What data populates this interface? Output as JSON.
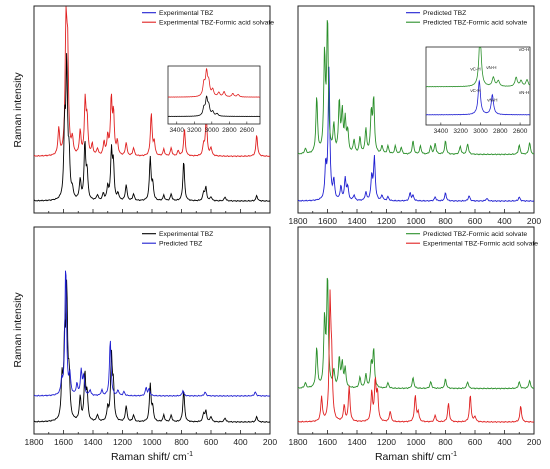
{
  "figure": {
    "y_axis_title": "Raman intensity",
    "x_axis_title": "Raman shift/ cm",
    "x_axis_title_sup": "-1"
  },
  "chart_data": [
    {
      "id": "top-left",
      "type": "line",
      "xlim": [
        1800,
        200
      ],
      "x_ticks": [],
      "legend": {
        "position": "top-right"
      },
      "series": [
        {
          "name": "Experimental TBZ",
          "color": "#1f1fd1",
          "legend_only": true
        },
        {
          "name": "Experimental TBZ-Formic acid solvate",
          "color": "#e02020",
          "offset": 0.24,
          "peaks": [
            [
              1632,
              0.2
            ],
            [
              1583,
              0.98
            ],
            [
              1572,
              0.72
            ],
            [
              1540,
              0.12
            ],
            [
              1487,
              0.18
            ],
            [
              1453,
              0.4
            ],
            [
              1440,
              0.26
            ],
            [
              1405,
              0.08
            ],
            [
              1370,
              0.05
            ],
            [
              1325,
              0.1
            ],
            [
              1300,
              0.14
            ],
            [
              1276,
              0.42
            ],
            [
              1261,
              0.3
            ],
            [
              1235,
              0.1
            ],
            [
              1175,
              0.1
            ],
            [
              1125,
              0.06
            ],
            [
              1005,
              0.32
            ],
            [
              985,
              0.1
            ],
            [
              920,
              0.05
            ],
            [
              870,
              0.06
            ],
            [
              822,
              0.04
            ],
            [
              780,
              0.2
            ],
            [
              650,
              0.08
            ],
            [
              632,
              0.3
            ],
            [
              600,
              0.06
            ],
            [
              290,
              0.16
            ]
          ]
        },
        {
          "name": "",
          "color": "#000000",
          "offset": 0.0,
          "peaks": [
            [
              1592,
              0.52
            ],
            [
              1578,
              0.98
            ],
            [
              1562,
              0.3
            ],
            [
              1540,
              0.07
            ],
            [
              1487,
              0.15
            ],
            [
              1455,
              0.42
            ],
            [
              1440,
              0.2
            ],
            [
              1370,
              0.04
            ],
            [
              1330,
              0.05
            ],
            [
              1300,
              0.1
            ],
            [
              1275,
              0.36
            ],
            [
              1262,
              0.26
            ],
            [
              1230,
              0.05
            ],
            [
              1175,
              0.12
            ],
            [
              1125,
              0.05
            ],
            [
              1012,
              0.32
            ],
            [
              995,
              0.12
            ],
            [
              920,
              0.04
            ],
            [
              870,
              0.05
            ],
            [
              785,
              0.3
            ],
            [
              650,
              0.06
            ],
            [
              635,
              0.1
            ],
            [
              600,
              0.03
            ],
            [
              505,
              0.03
            ],
            [
              290,
              0.04
            ]
          ]
        }
      ],
      "inset": {
        "xlim": [
          3500,
          2450
        ],
        "x_ticks": [
          "3400",
          "3200",
          "3000",
          "2800",
          "2600"
        ],
        "series": [
          {
            "color": "#e02020",
            "offset": 0.45,
            "peaks": [
              [
                3090,
                0.3
              ],
              [
                3060,
                0.55
              ],
              [
                3035,
                0.3
              ],
              [
                2990,
                0.16
              ],
              [
                2920,
                0.1
              ],
              [
                2860,
                0.12
              ],
              [
                2760,
                0.08
              ],
              [
                2700,
                0.06
              ]
            ]
          },
          {
            "color": "#000000",
            "offset": 0.08,
            "peaks": [
              [
                3090,
                0.18
              ],
              [
                3060,
                0.4
              ],
              [
                3035,
                0.22
              ],
              [
                2990,
                0.1
              ],
              [
                2940,
                0.06
              ]
            ]
          }
        ]
      }
    },
    {
      "id": "top-right",
      "type": "line",
      "xlim": [
        1800,
        200
      ],
      "x_ticks": [
        "1800",
        "1600",
        "1400",
        "1200",
        "1000",
        "800",
        "600",
        "400",
        "200"
      ],
      "legend": {
        "position": "top-right"
      },
      "series": [
        {
          "name": "Predicted TBZ",
          "color": "#1f1fd1",
          "offset": 0.0,
          "peaks": [
            [
              1612,
              0.25
            ],
            [
              1590,
              0.98
            ],
            [
              1557,
              0.14
            ],
            [
              1509,
              0.1
            ],
            [
              1480,
              0.16
            ],
            [
              1463,
              0.1
            ],
            [
              1420,
              0.04
            ],
            [
              1340,
              0.06
            ],
            [
              1300,
              0.18
            ],
            [
              1282,
              0.32
            ],
            [
              1230,
              0.04
            ],
            [
              1190,
              0.03
            ],
            [
              1040,
              0.06
            ],
            [
              1020,
              0.04
            ],
            [
              870,
              0.03
            ],
            [
              800,
              0.06
            ],
            [
              640,
              0.04
            ],
            [
              520,
              0.02
            ],
            [
              300,
              0.03
            ]
          ]
        },
        {
          "name": "Predicted TBZ-Formic acid solvate",
          "color": "#2a8f2a",
          "offset": 0.25,
          "peaks": [
            [
              1750,
              0.04
            ],
            [
              1673,
              0.42
            ],
            [
              1620,
              0.72
            ],
            [
              1600,
              0.98
            ],
            [
              1557,
              0.2
            ],
            [
              1520,
              0.38
            ],
            [
              1500,
              0.3
            ],
            [
              1480,
              0.24
            ],
            [
              1463,
              0.16
            ],
            [
              1420,
              0.1
            ],
            [
              1380,
              0.12
            ],
            [
              1340,
              0.18
            ],
            [
              1303,
              0.3
            ],
            [
              1287,
              0.4
            ],
            [
              1230,
              0.06
            ],
            [
              1190,
              0.06
            ],
            [
              1140,
              0.06
            ],
            [
              1100,
              0.05
            ],
            [
              1020,
              0.1
            ],
            [
              970,
              0.06
            ],
            [
              900,
              0.06
            ],
            [
              870,
              0.08
            ],
            [
              800,
              0.1
            ],
            [
              700,
              0.06
            ],
            [
              650,
              0.08
            ],
            [
              300,
              0.07
            ],
            [
              230,
              0.09
            ]
          ]
        }
      ],
      "inset": {
        "xlim": [
          3550,
          2500
        ],
        "x_ticks": [
          "3400",
          "3200",
          "3000",
          "2800",
          "2600"
        ],
        "series": [
          {
            "color": "#2a8f2a",
            "offset": 0.48,
            "peaks": [
              [
                3000,
                0.2
              ],
              [
                3005,
                0.75
              ],
              [
                2870,
                0.16
              ],
              [
                2820,
                0.1
              ],
              [
                2640,
                0.16
              ],
              [
                2590,
                0.1
              ],
              [
                2530,
                0.12
              ]
            ]
          },
          {
            "color": "#1f1fd1",
            "offset": 0.08,
            "peaks": [
              [
                3012,
                0.6
              ],
              [
                2880,
                0.35
              ]
            ]
          }
        ],
        "annotations": [
          {
            "text": "νC-H",
            "x": 3050,
            "y": 0.7
          },
          {
            "text": "νN-H",
            "x": 2890,
            "y": 0.72
          },
          {
            "text": "νN-H",
            "x": 2560,
            "y": 0.4
          },
          {
            "text": "νO-H",
            "x": 2560,
            "y": 0.95
          },
          {
            "text": "νC-H",
            "x": 3050,
            "y": 0.42
          },
          {
            "text": "νN-H",
            "x": 2880,
            "y": 0.3
          }
        ]
      }
    },
    {
      "id": "bottom-left",
      "type": "line",
      "xlim": [
        1800,
        200
      ],
      "x_ticks": [
        "1800",
        "1600",
        "1400",
        "1200",
        "1000",
        "800",
        "600",
        "400",
        "200"
      ],
      "legend": {
        "position": "top-right"
      },
      "series": [
        {
          "name": "Experimental TBZ",
          "color": "#000000",
          "offset": 0.0,
          "peaks": [
            [
              1610,
              0.3
            ],
            [
              1592,
              0.55
            ],
            [
              1578,
              0.92
            ],
            [
              1562,
              0.3
            ],
            [
              1487,
              0.18
            ],
            [
              1455,
              0.35
            ],
            [
              1440,
              0.2
            ],
            [
              1370,
              0.05
            ],
            [
              1300,
              0.1
            ],
            [
              1275,
              0.48
            ],
            [
              1262,
              0.25
            ],
            [
              1175,
              0.12
            ],
            [
              1125,
              0.05
            ],
            [
              1012,
              0.28
            ],
            [
              995,
              0.1
            ],
            [
              920,
              0.05
            ],
            [
              870,
              0.05
            ],
            [
              785,
              0.24
            ],
            [
              650,
              0.06
            ],
            [
              635,
              0.08
            ],
            [
              600,
              0.04
            ],
            [
              505,
              0.03
            ],
            [
              290,
              0.04
            ]
          ]
        },
        {
          "name": "Predicted TBZ",
          "color": "#1f1fd1",
          "offset": 0.14,
          "peaks": [
            [
              1612,
              0.1
            ],
            [
              1585,
              0.98
            ],
            [
              1557,
              0.14
            ],
            [
              1509,
              0.08
            ],
            [
              1480,
              0.18
            ],
            [
              1463,
              0.14
            ],
            [
              1420,
              0.04
            ],
            [
              1340,
              0.04
            ],
            [
              1283,
              0.42
            ],
            [
              1230,
              0.04
            ],
            [
              1190,
              0.03
            ],
            [
              1040,
              0.06
            ],
            [
              1020,
              0.05
            ],
            [
              790,
              0.04
            ],
            [
              640,
              0.03
            ],
            [
              300,
              0.03
            ]
          ]
        }
      ]
    },
    {
      "id": "bottom-right",
      "type": "line",
      "xlim": [
        1800,
        200
      ],
      "x_ticks": [
        "1800",
        "1600",
        "1400",
        "1200",
        "1000",
        "800",
        "600",
        "400",
        "200"
      ],
      "legend": {
        "position": "top-right"
      },
      "series": [
        {
          "name": "Predicted TBZ-Formic acid solvate",
          "color": "#2a8f2a",
          "offset": 0.18,
          "peaks": [
            [
              1750,
              0.04
            ],
            [
              1673,
              0.3
            ],
            [
              1620,
              0.5
            ],
            [
              1600,
              0.82
            ],
            [
              1557,
              0.12
            ],
            [
              1520,
              0.22
            ],
            [
              1500,
              0.18
            ],
            [
              1480,
              0.14
            ],
            [
              1380,
              0.08
            ],
            [
              1340,
              0.1
            ],
            [
              1303,
              0.18
            ],
            [
              1287,
              0.28
            ],
            [
              1190,
              0.04
            ],
            [
              1020,
              0.08
            ],
            [
              900,
              0.05
            ],
            [
              800,
              0.07
            ],
            [
              650,
              0.05
            ],
            [
              300,
              0.05
            ],
            [
              230,
              0.06
            ]
          ]
        },
        {
          "name": "Experimental TBZ-Formic acid solvate",
          "color": "#e02020",
          "offset": 0.0,
          "peaks": [
            [
              1640,
              0.18
            ],
            [
              1583,
              0.88
            ],
            [
              1572,
              0.4
            ],
            [
              1487,
              0.12
            ],
            [
              1453,
              0.26
            ],
            [
              1300,
              0.22
            ],
            [
              1276,
              0.3
            ],
            [
              1261,
              0.2
            ],
            [
              1175,
              0.08
            ],
            [
              1005,
              0.2
            ],
            [
              985,
              0.07
            ],
            [
              870,
              0.05
            ],
            [
              780,
              0.14
            ],
            [
              632,
              0.2
            ],
            [
              600,
              0.04
            ],
            [
              290,
              0.12
            ]
          ]
        }
      ]
    }
  ]
}
